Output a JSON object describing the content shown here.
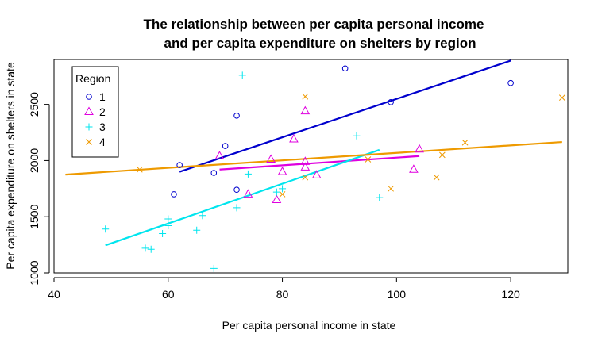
{
  "chart_data": {
    "type": "scatter",
    "title_lines": [
      "The relationship between per capita personal income",
      "and per capita expenditure on shelters by region"
    ],
    "xlabel": "Per capita personal income in state",
    "ylabel": "Per capita expenditure on shelters in state",
    "xlim": [
      40,
      130
    ],
    "ylim": [
      1000,
      2900
    ],
    "x_ticks": [
      40,
      60,
      80,
      100,
      120
    ],
    "y_ticks": [
      1000,
      1500,
      2000,
      2500
    ],
    "grid": false,
    "legend": {
      "title": "Region",
      "placement": "top-left"
    },
    "series": [
      {
        "name": "1",
        "marker": "circle",
        "color": "#0000CD",
        "x": [
          61,
          62,
          68,
          70,
          72,
          72,
          91,
          99,
          120
        ],
        "y": [
          1700,
          1960,
          1890,
          2130,
          2400,
          1740,
          2820,
          2520,
          2690
        ],
        "fit": {
          "x": [
            62,
            120
          ],
          "y": [
            1900,
            2890
          ]
        }
      },
      {
        "name": "2",
        "marker": "triangle",
        "color": "#DF00DF",
        "x": [
          69,
          74,
          78,
          79,
          80,
          82,
          84,
          84,
          84,
          86,
          103,
          104
        ],
        "y": [
          2040,
          1700,
          2010,
          1650,
          1900,
          2190,
          2440,
          1990,
          1940,
          1870,
          1920,
          2100
        ],
        "fit": {
          "x": [
            69,
            104
          ],
          "y": [
            1920,
            2040
          ]
        }
      },
      {
        "name": "3",
        "marker": "plus",
        "color": "#00E5EE",
        "x": [
          49,
          56,
          57,
          59,
          60,
          60,
          65,
          66,
          68,
          72,
          73,
          74,
          79,
          80,
          93,
          97
        ],
        "y": [
          1390,
          1220,
          1210,
          1350,
          1480,
          1420,
          1380,
          1510,
          1040,
          1580,
          2760,
          1880,
          1720,
          1750,
          2220,
          1670
        ],
        "fit": {
          "x": [
            49,
            97
          ],
          "y": [
            1245,
            2095
          ]
        }
      },
      {
        "name": "4",
        "marker": "cross",
        "color": "#EE9A00",
        "x": [
          55,
          84,
          84,
          95,
          99,
          107,
          108,
          112,
          129,
          80
        ],
        "y": [
          1920,
          2570,
          1850,
          2010,
          1750,
          1850,
          2050,
          2160,
          2560,
          1700
        ],
        "fit": {
          "x": [
            42,
            129
          ],
          "y": [
            1875,
            2165
          ]
        }
      }
    ]
  }
}
